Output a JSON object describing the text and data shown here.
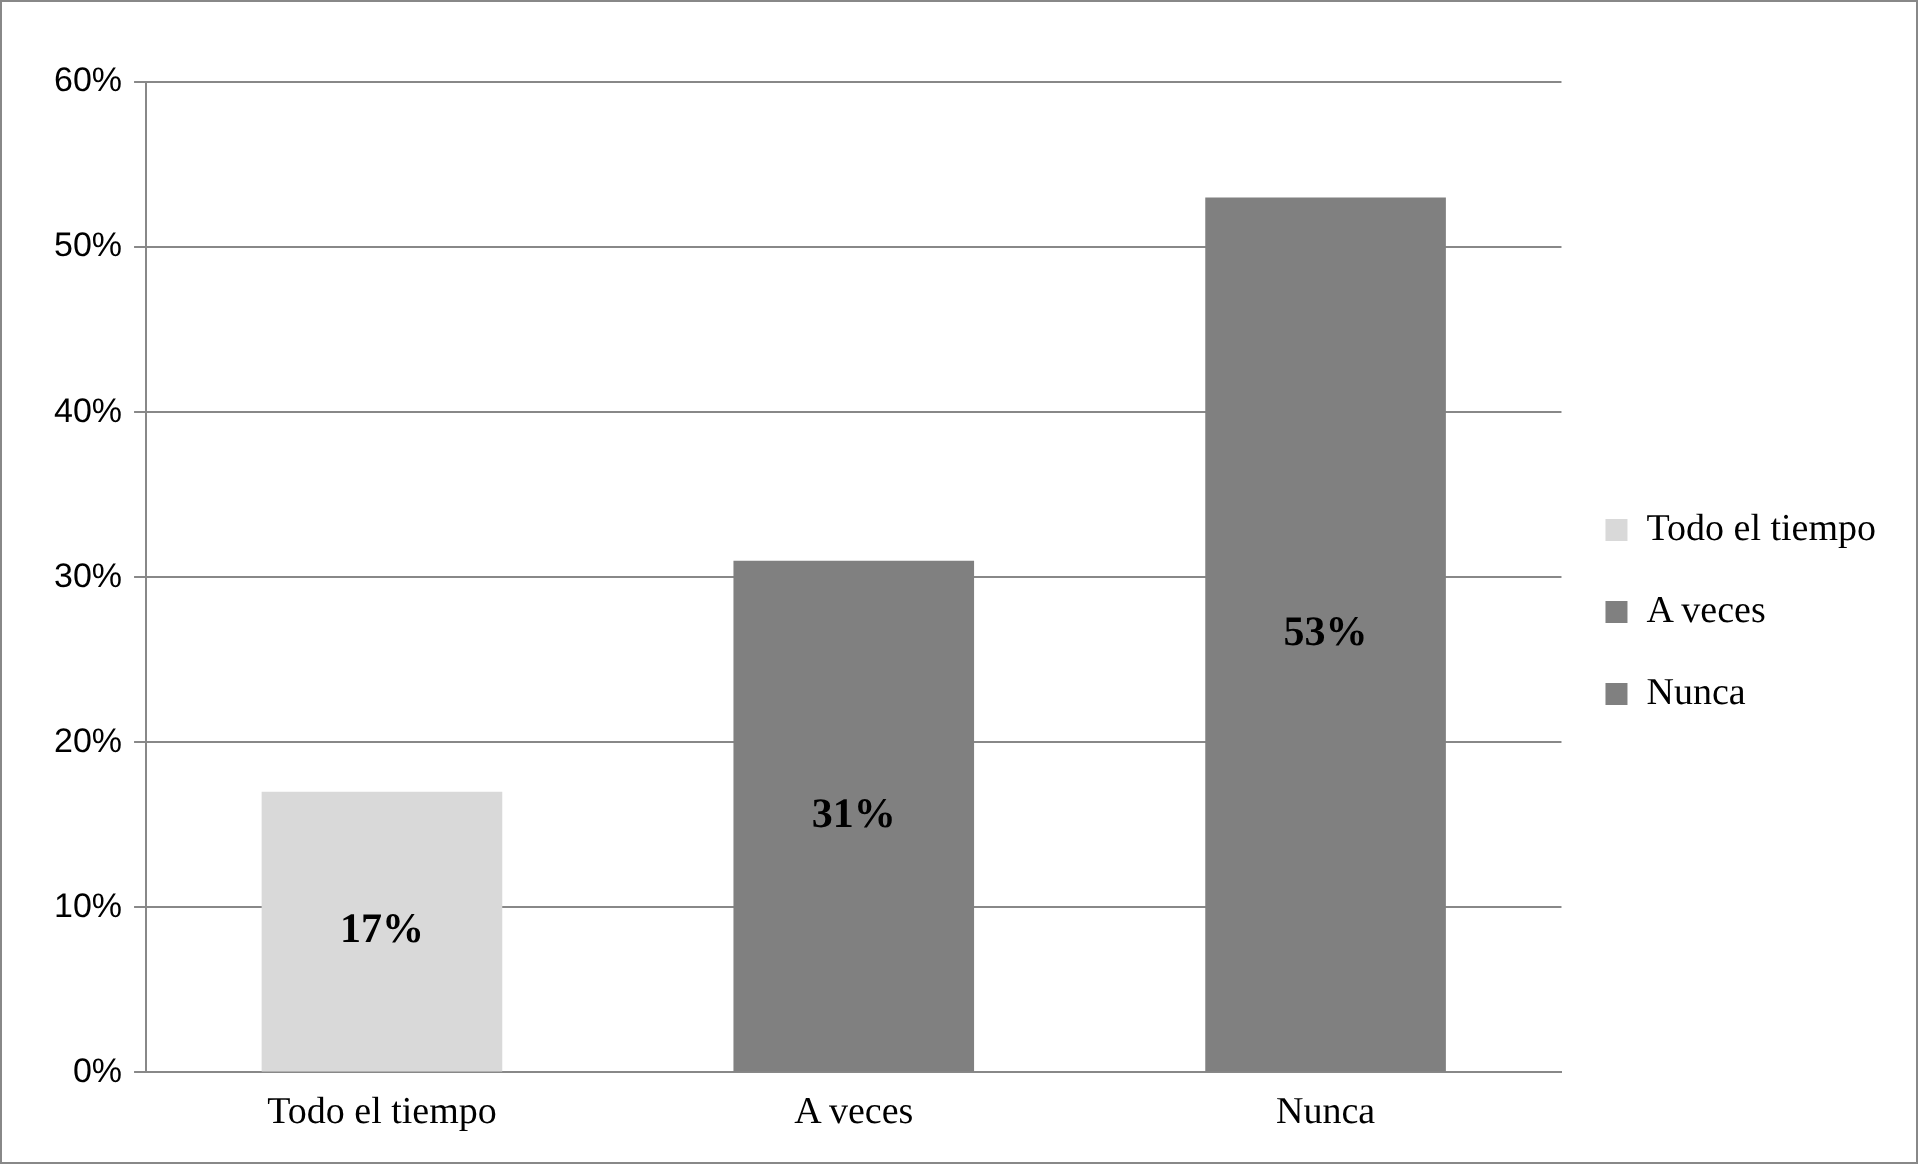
{
  "chart_data": {
    "type": "bar",
    "categories": [
      "Todo el tiempo",
      "A veces",
      "Nunca"
    ],
    "series": [
      {
        "name": "Todo el tiempo",
        "color": "#d9d9d9",
        "values": [
          17,
          null,
          null
        ],
        "value_labels": [
          "17%",
          null,
          null
        ]
      },
      {
        "name": "A veces",
        "color": "#808080",
        "values": [
          null,
          31,
          null
        ],
        "value_labels": [
          null,
          "31%",
          null
        ]
      },
      {
        "name": "Nunca",
        "color": "#808080",
        "values": [
          null,
          null,
          53
        ],
        "value_labels": [
          null,
          null,
          "53%"
        ]
      }
    ],
    "ylim": [
      0,
      60
    ],
    "yticks": [
      {
        "value": 0,
        "label": "0%"
      },
      {
        "value": 10,
        "label": "10%"
      },
      {
        "value": 20,
        "label": "20%"
      },
      {
        "value": 30,
        "label": "30%"
      },
      {
        "value": 40,
        "label": "40%"
      },
      {
        "value": 50,
        "label": "50%"
      },
      {
        "value": 60,
        "label": "60%"
      }
    ],
    "grid": "y",
    "legend": "right"
  }
}
